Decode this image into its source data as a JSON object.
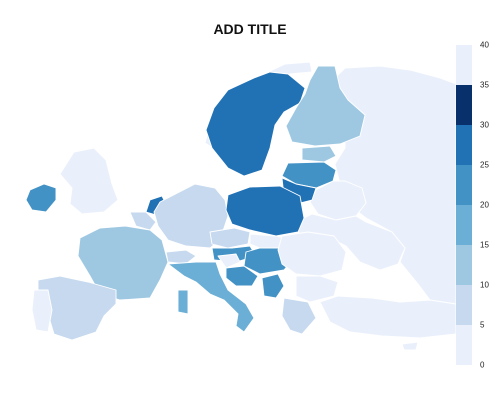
{
  "map": {
    "title": "ADD TITLE"
  },
  "legend": {
    "ticks": [
      "0",
      "5",
      "10",
      "15",
      "20",
      "25",
      "30",
      "35",
      "40"
    ],
    "colors": [
      "#eaf0fb",
      "#c6d9ef",
      "#9ec8e2",
      "#6baed6",
      "#4292c6",
      "#2171b5",
      "#08306b",
      "#eaf0fb"
    ]
  },
  "regions": [
    {
      "name": "russia",
      "value": 40
    },
    {
      "name": "belarus",
      "value": 40
    },
    {
      "name": "ukraine",
      "value": 40
    },
    {
      "name": "norway",
      "value": 0
    },
    {
      "name": "sweden",
      "value": 25
    },
    {
      "name": "finland",
      "value": 10
    },
    {
      "name": "estonia",
      "value": 10
    },
    {
      "name": "latvia",
      "value": 20
    },
    {
      "name": "lithuania",
      "value": 25
    },
    {
      "name": "ireland",
      "value": 20
    },
    {
      "name": "united-kingdom",
      "value": 0
    },
    {
      "name": "netherlands",
      "value": 25
    },
    {
      "name": "belgium",
      "value": 5
    },
    {
      "name": "france",
      "value": 10
    },
    {
      "name": "germany",
      "value": 5
    },
    {
      "name": "poland",
      "value": 25
    },
    {
      "name": "czechia",
      "value": 5
    },
    {
      "name": "austria",
      "value": 20
    },
    {
      "name": "switzerland",
      "value": 5
    },
    {
      "name": "slovakia",
      "value": 35
    },
    {
      "name": "hungary",
      "value": 20
    },
    {
      "name": "slovenia",
      "value": 35
    },
    {
      "name": "croatia",
      "value": 20
    },
    {
      "name": "italy",
      "value": 15
    },
    {
      "name": "spain",
      "value": 5
    },
    {
      "name": "portugal",
      "value": 35
    },
    {
      "name": "romania",
      "value": 35
    },
    {
      "name": "serbia",
      "value": 20
    },
    {
      "name": "bulgaria",
      "value": 0
    },
    {
      "name": "greece",
      "value": 5
    },
    {
      "name": "turkey",
      "value": 35
    },
    {
      "name": "cyprus",
      "value": 0
    }
  ]
}
